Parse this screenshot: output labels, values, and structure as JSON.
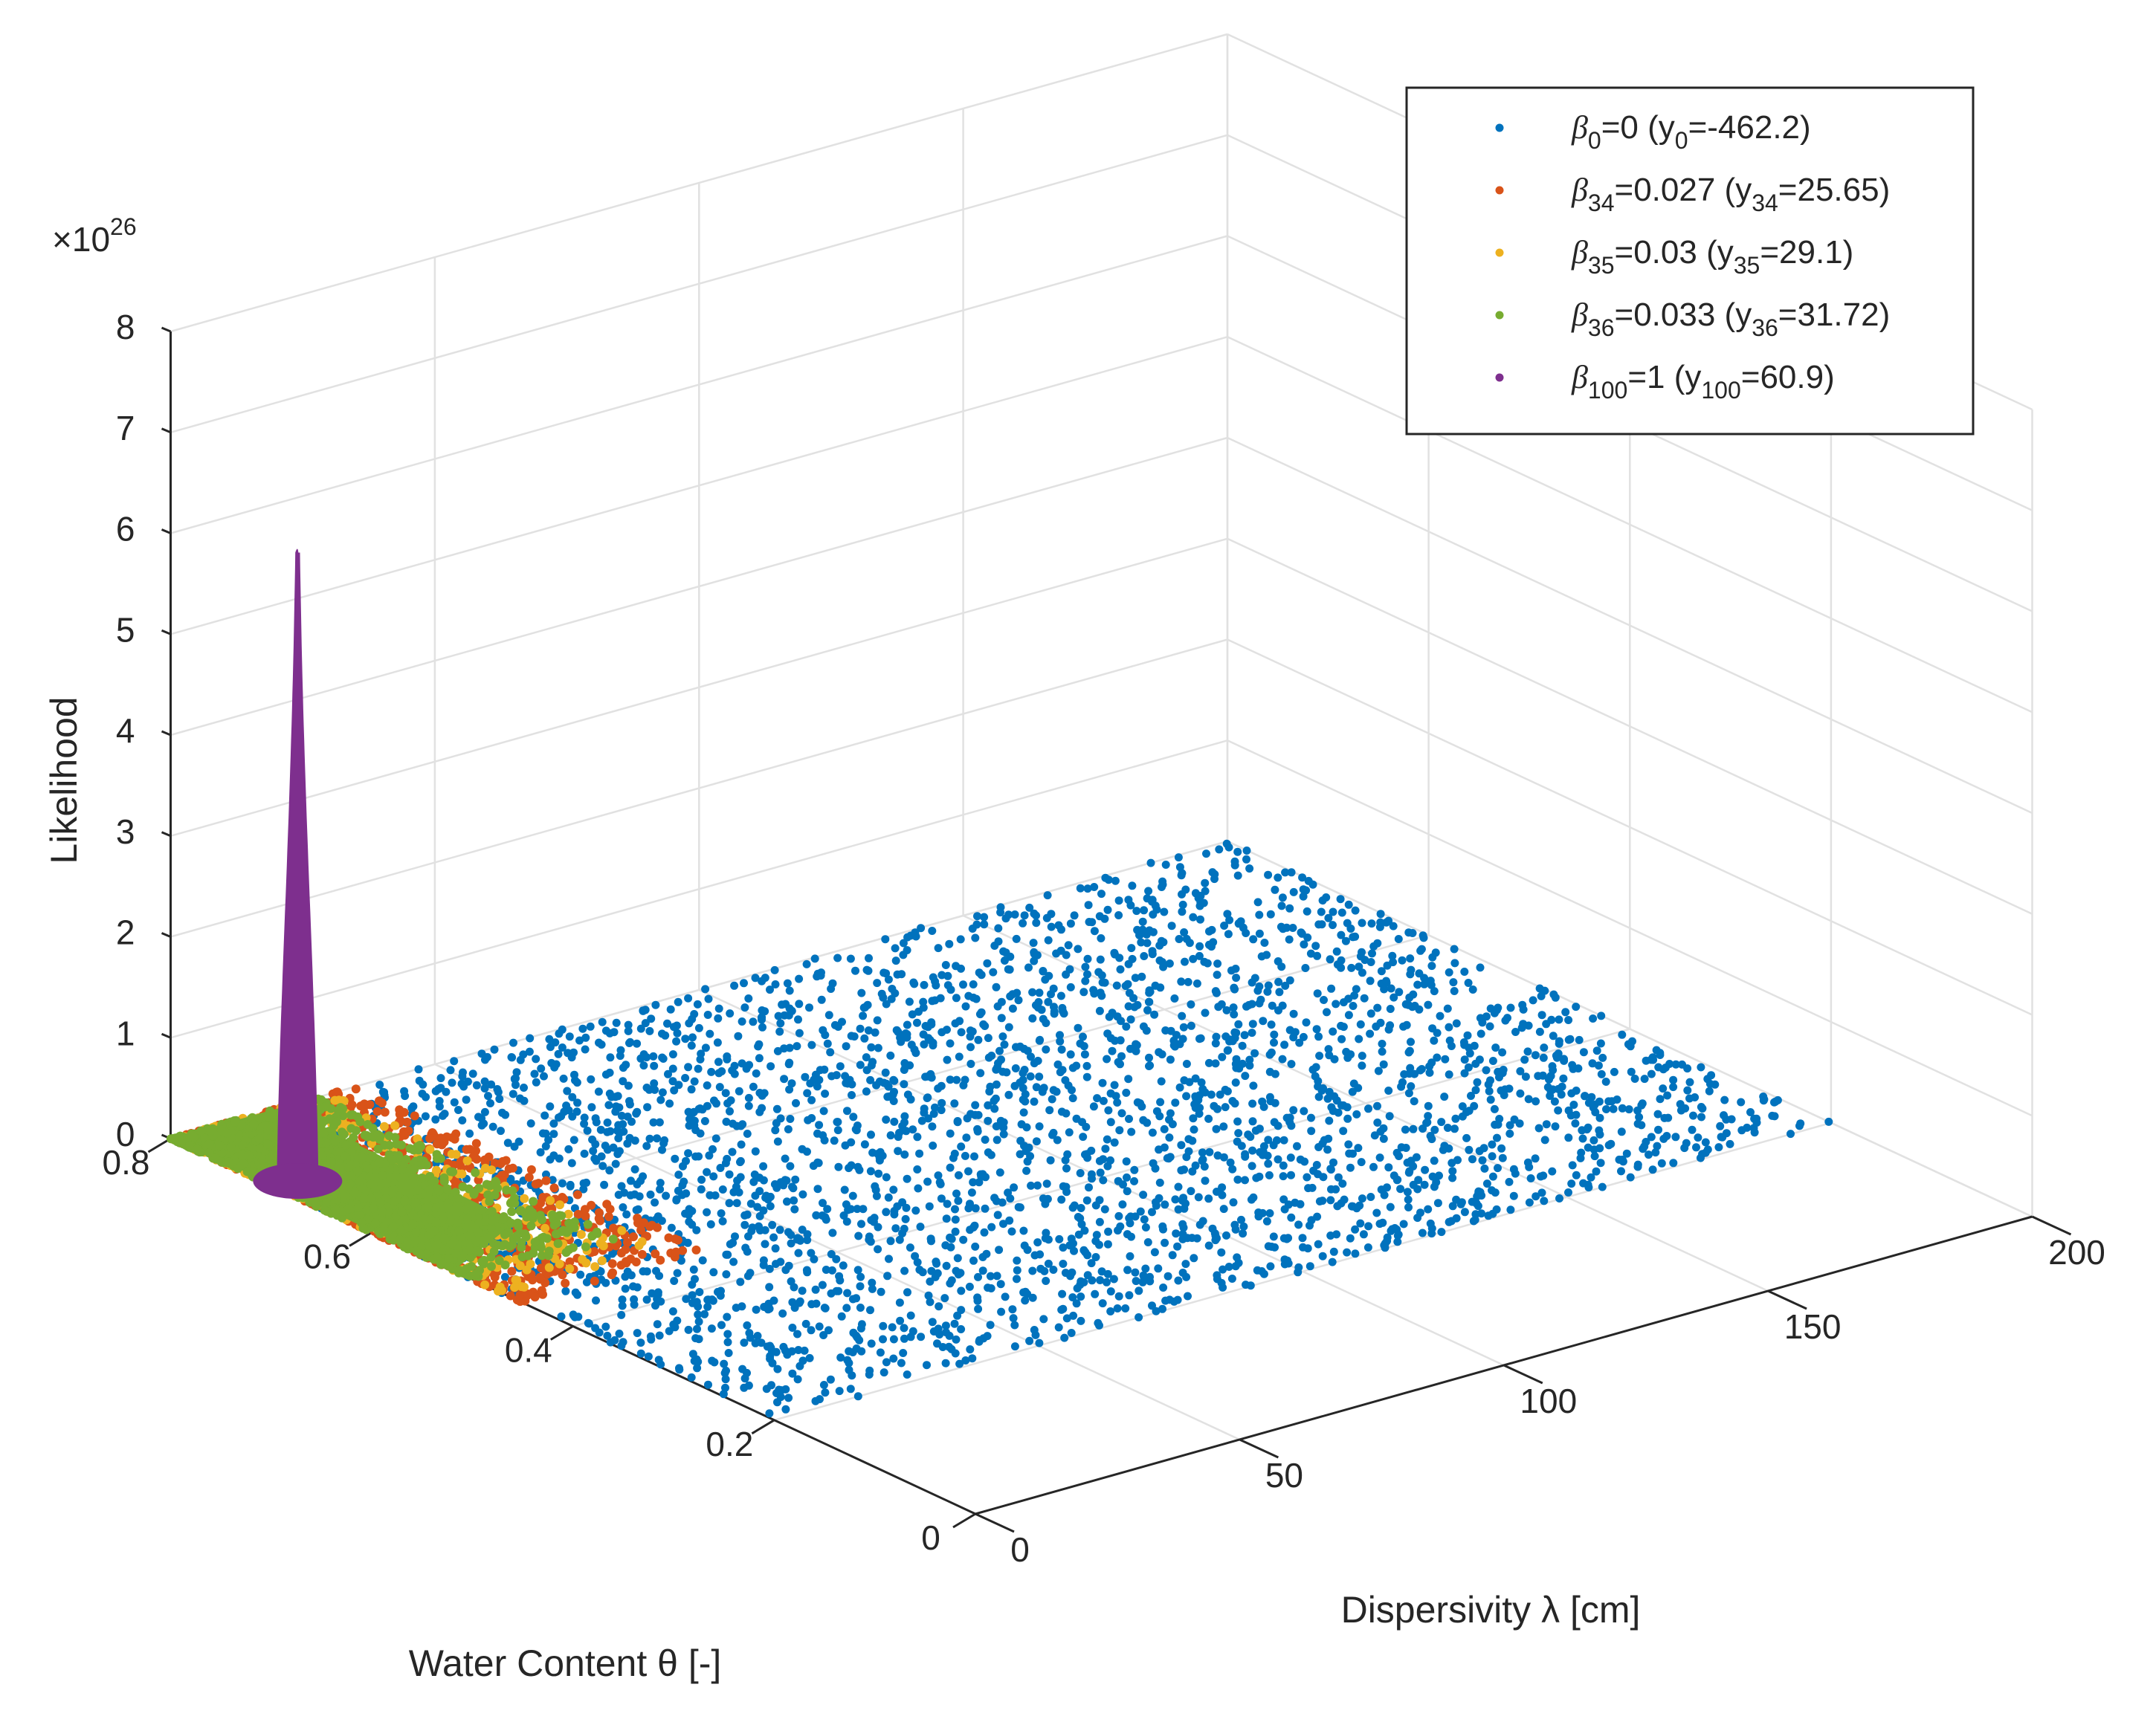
{
  "chart_data": {
    "type": "scatter3d",
    "title": "",
    "xlabel": "Dispersivity λ [cm]",
    "ylabel": "Water Content θ [-]",
    "zlabel": "Likelihood",
    "xlim": [
      0,
      200
    ],
    "ylim": [
      0,
      0.8
    ],
    "zlim": [
      0,
      8
    ],
    "z_exponent_label": "×10",
    "z_exponent": "26",
    "xticks": [
      "0",
      "50",
      "100",
      "150",
      "200"
    ],
    "yticks": [
      "0",
      "0.2",
      "0.4",
      "0.6",
      "0.8"
    ],
    "zticks": [
      "0",
      "1",
      "2",
      "3",
      "4",
      "5",
      "6",
      "7",
      "8"
    ],
    "grid": true,
    "legend_location": "top-right",
    "series": [
      {
        "name": "β0=0 (y0=-462.2)",
        "legend": {
          "beta": "β",
          "beta_sub": "0",
          "beta_val": "=0  (y",
          "y_sub": "0",
          "y_val": "=-462.2)"
        },
        "color": "#0072BD",
        "lambda_range": [
          0,
          200
        ],
        "theta_range": [
          0.2,
          0.8
        ],
        "peak_likelihood": 0
      },
      {
        "name": "β34=0.027 (y34=25.65)",
        "legend": {
          "beta": "β",
          "beta_sub": "34",
          "beta_val": "=0.027  (y",
          "y_sub": "34",
          "y_val": "=25.65)"
        },
        "color": "#D95319",
        "lambda_range": [
          0,
          35
        ],
        "theta_range": [
          0.45,
          0.8
        ],
        "peak_likelihood": 0
      },
      {
        "name": "β35=0.03 (y35=29.1)",
        "legend": {
          "beta": "β",
          "beta_sub": "35",
          "beta_val": "=0.03  (y",
          "y_sub": "35",
          "y_val": "=29.1)"
        },
        "color": "#EDB120",
        "lambda_range": [
          0,
          30
        ],
        "theta_range": [
          0.47,
          0.8
        ],
        "peak_likelihood": 0
      },
      {
        "name": "β36=0.033 (y36=31.72)",
        "legend": {
          "beta": "β",
          "beta_sub": "36",
          "beta_val": "=0.033  (y",
          "y_sub": "36",
          "y_val": "=31.72)"
        },
        "color": "#77AC30",
        "lambda_range": [
          0,
          28
        ],
        "theta_range": [
          0.5,
          0.8
        ],
        "peak_likelihood": 0
      },
      {
        "name": "β100=1 (y100=60.9)",
        "legend": {
          "beta": "β",
          "beta_sub": "100",
          "beta_val": "=1  (y",
          "y_sub": "100",
          "y_val": "=60.9)"
        },
        "color": "#7E2F8E",
        "peak_lambda": 5,
        "peak_theta": 0.7,
        "peak_likelihood": 6.2
      }
    ]
  }
}
